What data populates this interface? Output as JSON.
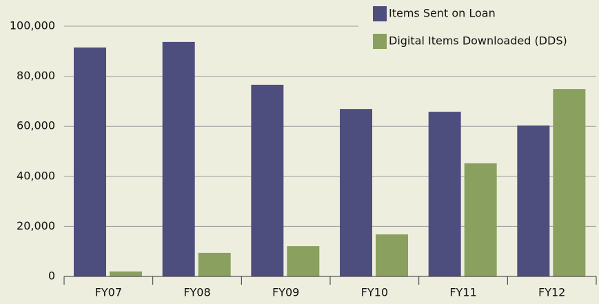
{
  "chart_data": {
    "type": "bar",
    "categories": [
      "FY07",
      "FY08",
      "FY09",
      "FY10",
      "FY11",
      "FY12"
    ],
    "series": [
      {
        "name": "Items Sent on Loan",
        "color": "#4d4d7e",
        "values": [
          91500,
          93700,
          76600,
          66900,
          65800,
          60300
        ]
      },
      {
        "name": "Digital Items Downloaded (DDS)",
        "color": "#8aa05e",
        "values": [
          2000,
          9400,
          12100,
          16800,
          45200,
          74900
        ]
      }
    ],
    "ylim": [
      0,
      100000
    ],
    "yticks": [
      0,
      {
        "value": 20000,
        "label": "20,000"
      },
      {
        "value": 40000,
        "label": "40,000"
      },
      {
        "value": 60000,
        "label": "60,000"
      },
      {
        "value": 80000,
        "label": "80,000"
      },
      {
        "value": 100000,
        "label": "100,000"
      }
    ],
    "grid": true,
    "legend": "top-right"
  }
}
